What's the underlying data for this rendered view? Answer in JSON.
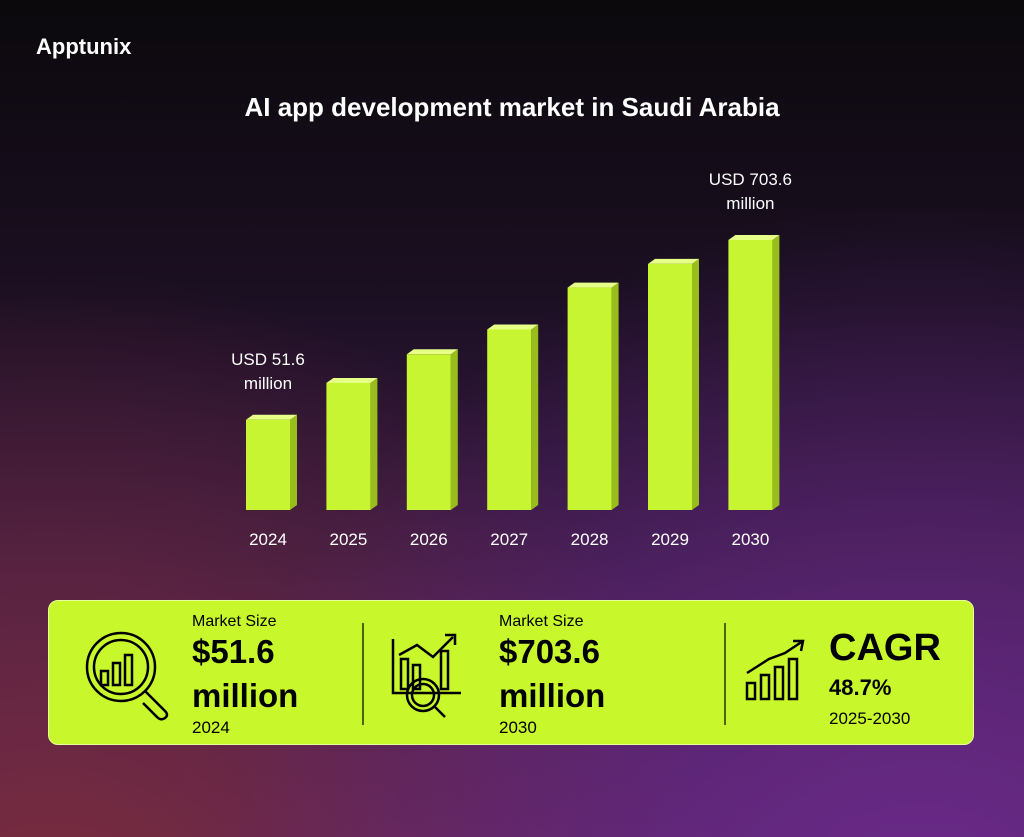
{
  "brand": "Apptunix",
  "chart_data": {
    "type": "bar3d",
    "title": "AI app development market in Saudi Arabia",
    "categories": [
      "2024",
      "2025",
      "2026",
      "2027",
      "2028",
      "2029",
      "2030"
    ],
    "values": [
      51.6,
      185,
      289,
      379,
      531,
      617,
      703.6
    ],
    "value_labels": [
      "USD 51.6 million",
      null,
      null,
      null,
      null,
      null,
      "USD 703.6 million"
    ],
    "color": "#c8f531",
    "ylim": [
      -276,
      703.6
    ]
  },
  "stats": [
    {
      "label": "Market Size",
      "value": "$51.6",
      "unit": "million",
      "period": "2024"
    },
    {
      "label": "Market Size",
      "value": "$703.6",
      "unit": "million",
      "period": "2030"
    },
    {
      "label": "CAGR",
      "value": "48.7%",
      "period": "2025-2030"
    }
  ]
}
